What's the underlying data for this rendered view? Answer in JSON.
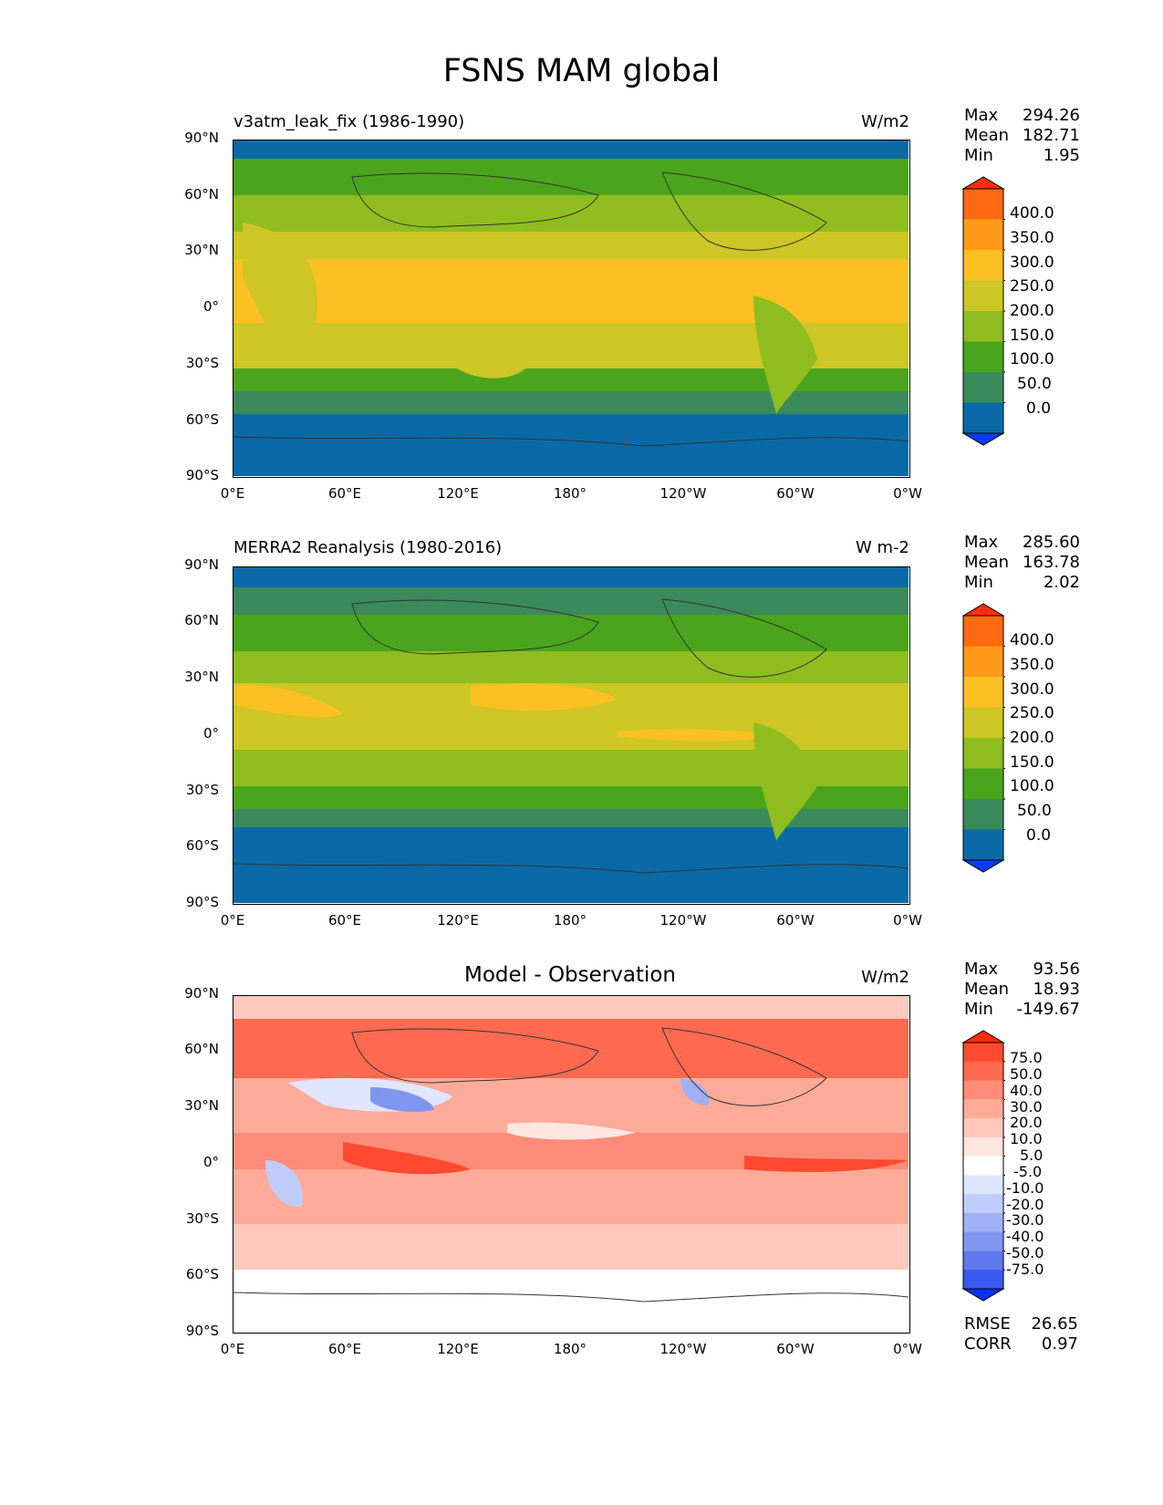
{
  "figure_title": "FSNS MAM global",
  "chart_data": [
    {
      "type": "heatmap",
      "title": "v3atm_leak_fix (1986-1990)",
      "units": "W/m2",
      "stats": {
        "max": "294.26",
        "mean": "182.71",
        "min": "1.95"
      },
      "colorbar_levels": [
        "400.0",
        "350.0",
        "300.0",
        "250.0",
        "200.0",
        "150.0",
        "100.0",
        "50.0",
        "0.0"
      ],
      "colorbar_colors": [
        "#ff2e0f",
        "#ff6a10",
        "#ff9a18",
        "#fdc022",
        "#cdc624",
        "#8fbd1f",
        "#4aa51c",
        "#3a8a5c",
        "#0a6aa8",
        "#0a3cf5"
      ]
    },
    {
      "type": "heatmap",
      "title": "MERRA2 Reanalysis (1980-2016)",
      "units": "W m-2",
      "stats": {
        "max": "285.60",
        "mean": "163.78",
        "min": "2.02"
      },
      "colorbar_levels": [
        "400.0",
        "350.0",
        "300.0",
        "250.0",
        "200.0",
        "150.0",
        "100.0",
        "50.0",
        "0.0"
      ],
      "colorbar_colors": [
        "#ff2e0f",
        "#ff6a10",
        "#ff9a18",
        "#fdc022",
        "#cdc624",
        "#8fbd1f",
        "#4aa51c",
        "#3a8a5c",
        "#0a6aa8",
        "#0a3cf5"
      ]
    },
    {
      "type": "heatmap",
      "title": "Model - Observation",
      "units": "W/m2",
      "stats": {
        "max": "93.56",
        "mean": "18.93",
        "min": "-149.67"
      },
      "metrics": {
        "rmse": "26.65",
        "corr": "0.97"
      },
      "colorbar_levels": [
        "75.0",
        "50.0",
        "40.0",
        "30.0",
        "20.0",
        "10.0",
        "5.0",
        "-5.0",
        "-10.0",
        "-20.0",
        "-30.0",
        "-40.0",
        "-50.0",
        "-75.0"
      ],
      "colorbar_colors": [
        "#ff2a0a",
        "#ff4a30",
        "#ff6a50",
        "#ff8c78",
        "#ffab9a",
        "#ffc8bc",
        "#ffe6e0",
        "#ffffff",
        "#e0e6ff",
        "#c0ccfb",
        "#a0b0f5",
        "#8096ee",
        "#5e78ee",
        "#3a58f2",
        "#0a30ff"
      ]
    }
  ],
  "axes": {
    "y_ticks": [
      "90°N",
      "60°N",
      "30°N",
      "0°",
      "30°S",
      "60°S",
      "90°S"
    ],
    "x_ticks": [
      "0°E",
      "60°E",
      "120°E",
      "180°",
      "120°W",
      "60°W",
      "0°W"
    ]
  },
  "labels": {
    "max": "Max",
    "mean": "Mean",
    "min": "Min",
    "rmse": "RMSE",
    "corr": "CORR"
  }
}
